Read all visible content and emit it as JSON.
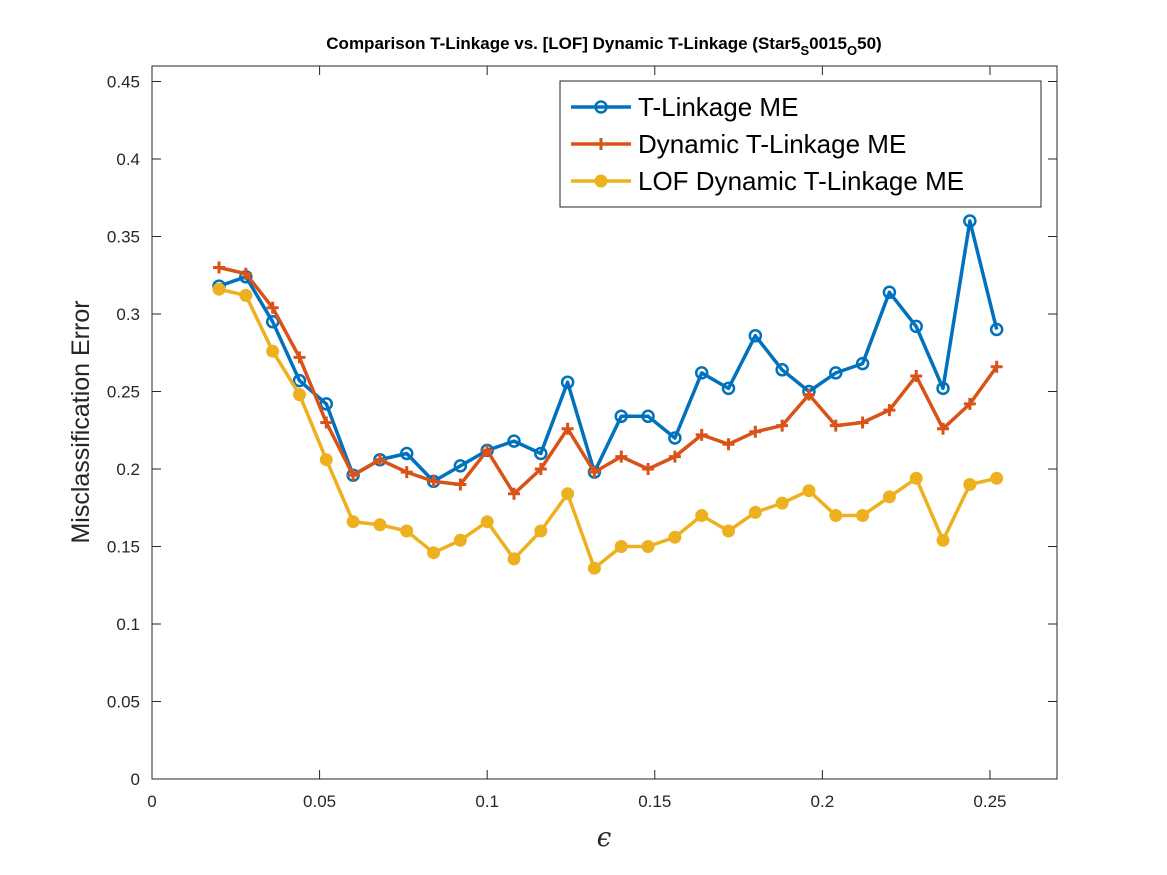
{
  "chart_data": {
    "type": "line",
    "title_parts": [
      "Comparison T-Linkage vs. [LOF] Dynamic T-Linkage (Star5",
      "S",
      "0015",
      "O",
      "50)"
    ],
    "xlabel": "ϵ",
    "ylabel": "Misclassification Error",
    "xlim": [
      0,
      0.27
    ],
    "ylim": [
      0,
      0.46
    ],
    "xticks": [
      0,
      0.05,
      0.1,
      0.15,
      0.2,
      0.25
    ],
    "xtick_labels": [
      "0",
      "0.05",
      "0.1",
      "0.15",
      "0.2",
      "0.25"
    ],
    "yticks": [
      0,
      0.05,
      0.1,
      0.15,
      0.2,
      0.25,
      0.3,
      0.35,
      0.4,
      0.45
    ],
    "ytick_labels": [
      "0",
      "0.05",
      "0.1",
      "0.15",
      "0.2",
      "0.25",
      "0.3",
      "0.35",
      "0.4",
      "0.45"
    ],
    "grid": false,
    "legend_position": "top-right",
    "x": [
      0.02,
      0.028,
      0.036,
      0.044,
      0.052,
      0.06,
      0.068,
      0.076,
      0.084,
      0.092,
      0.1,
      0.108,
      0.116,
      0.124,
      0.132,
      0.14,
      0.148,
      0.156,
      0.164,
      0.172,
      0.18,
      0.188,
      0.196,
      0.204,
      0.212,
      0.22,
      0.228,
      0.236,
      0.244,
      0.252
    ],
    "series": [
      {
        "name": "T-Linkage ME",
        "color": "#0072BD",
        "marker": "circle",
        "values": [
          0.318,
          0.324,
          0.295,
          0.257,
          0.242,
          0.196,
          0.206,
          0.21,
          0.192,
          0.202,
          0.212,
          0.218,
          0.21,
          0.256,
          0.198,
          0.234,
          0.234,
          0.22,
          0.262,
          0.252,
          0.286,
          0.264,
          0.25,
          0.262,
          0.268,
          0.314,
          0.292,
          0.252,
          0.36,
          0.29
        ]
      },
      {
        "name": "Dynamic T-Linkage ME",
        "color": "#D95319",
        "marker": "plus",
        "values": [
          0.33,
          0.326,
          0.304,
          0.272,
          0.23,
          0.196,
          0.206,
          0.198,
          0.192,
          0.19,
          0.212,
          0.184,
          0.2,
          0.226,
          0.198,
          0.208,
          0.2,
          0.208,
          0.222,
          0.216,
          0.224,
          0.228,
          0.248,
          0.228,
          0.23,
          0.238,
          0.26,
          0.226,
          0.242,
          0.266
        ]
      },
      {
        "name": "LOF Dynamic T-Linkage ME",
        "color": "#EDB120",
        "marker": "filled-circle",
        "values": [
          0.316,
          0.312,
          0.276,
          0.248,
          0.206,
          0.166,
          0.164,
          0.16,
          0.146,
          0.154,
          0.166,
          0.142,
          0.16,
          0.184,
          0.136,
          0.15,
          0.15,
          0.156,
          0.17,
          0.16,
          0.172,
          0.178,
          0.186,
          0.17,
          0.17,
          0.182,
          0.194,
          0.154,
          0.19,
          0.194
        ]
      }
    ]
  }
}
